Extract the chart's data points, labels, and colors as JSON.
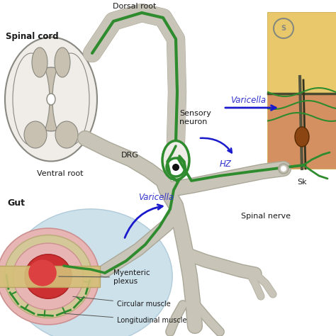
{
  "background_color": "#ffffff",
  "labels": {
    "spinal_cord": "Spinal cord",
    "dorsal_root": "Dorsal root",
    "ventral_root": "Ventral root",
    "drg": "DRG",
    "sensory_neuron": "Sensory\nneuron",
    "spinal_nerve": "Spinal nerve",
    "hz": "HZ",
    "varicella_top": "Varicella",
    "varicella_bottom": "Varicella",
    "gut": "Gut",
    "myenteric_plexus": "Myenteric\nplexus",
    "circular_muscle": "Circular muscle",
    "longitudinal_muscle": "Longitudinal muscle",
    "skin": "Sk"
  },
  "colors": {
    "nerve_green": "#2e8b2e",
    "nerve_gray": "#c8c4b8",
    "nerve_gray_edge": "#aaa898",
    "blue_arrow": "#1a1acc",
    "varicella_blue": "#3333cc",
    "text_black": "#1a1a1a",
    "spinal_white": "#f0ede8",
    "spinal_gray": "#c8c0b0",
    "spinal_outline": "#888880",
    "skin_yellow": "#e8c86a",
    "skin_peach": "#d49060",
    "skin_dark_line": "#4a4a30",
    "gut_blue": "#bed8e8",
    "gut_pink_outer": "#e8b8b8",
    "gut_beige": "#d4c898",
    "gut_green": "#2e8b2e",
    "gut_red": "#cc3030",
    "white": "#ffffff"
  }
}
